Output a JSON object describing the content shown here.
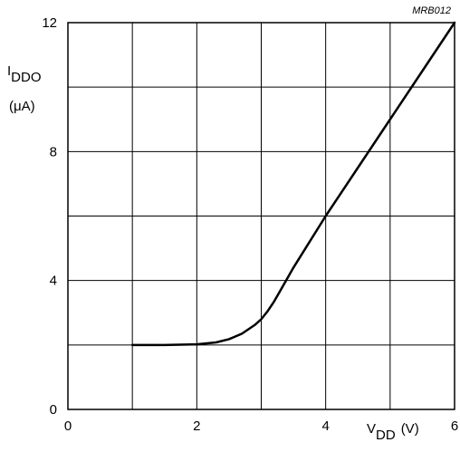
{
  "chart_data": {
    "type": "line",
    "code_label": "MRB012",
    "ylabel": {
      "symbol": "I",
      "subscript": "DDO",
      "unit": "(μA)"
    },
    "xlabel": {
      "symbol": "V",
      "subscript": "DD",
      "unit": "(V)"
    },
    "xlim": [
      0,
      6
    ],
    "ylim": [
      0,
      12
    ],
    "x_ticks": [
      0,
      1,
      2,
      3,
      4,
      5,
      6
    ],
    "y_ticks": [
      0,
      2,
      4,
      6,
      8,
      10,
      12
    ],
    "x_tick_labels": [
      {
        "value": 0,
        "text": "0"
      },
      {
        "value": 2,
        "text": "2"
      },
      {
        "value": 4,
        "text": "4"
      },
      {
        "value": 6,
        "text": "6"
      }
    ],
    "y_tick_labels": [
      {
        "value": 0,
        "text": "0"
      },
      {
        "value": 4,
        "text": "4"
      },
      {
        "value": 8,
        "text": "8"
      },
      {
        "value": 12,
        "text": "12"
      }
    ],
    "grid": true,
    "series": [
      {
        "color": "#000000",
        "points": [
          [
            1.0,
            2.0
          ],
          [
            1.5,
            2.0
          ],
          [
            2.0,
            2.02
          ],
          [
            2.3,
            2.08
          ],
          [
            2.5,
            2.18
          ],
          [
            2.7,
            2.35
          ],
          [
            2.9,
            2.62
          ],
          [
            3.0,
            2.8
          ],
          [
            3.1,
            3.05
          ],
          [
            3.2,
            3.35
          ],
          [
            3.3,
            3.7
          ],
          [
            3.4,
            4.05
          ],
          [
            3.5,
            4.4
          ],
          [
            3.75,
            5.2
          ],
          [
            4.0,
            6.0
          ],
          [
            4.5,
            7.5
          ],
          [
            5.0,
            9.0
          ],
          [
            5.5,
            10.5
          ],
          [
            6.0,
            12.0
          ]
        ]
      }
    ]
  }
}
